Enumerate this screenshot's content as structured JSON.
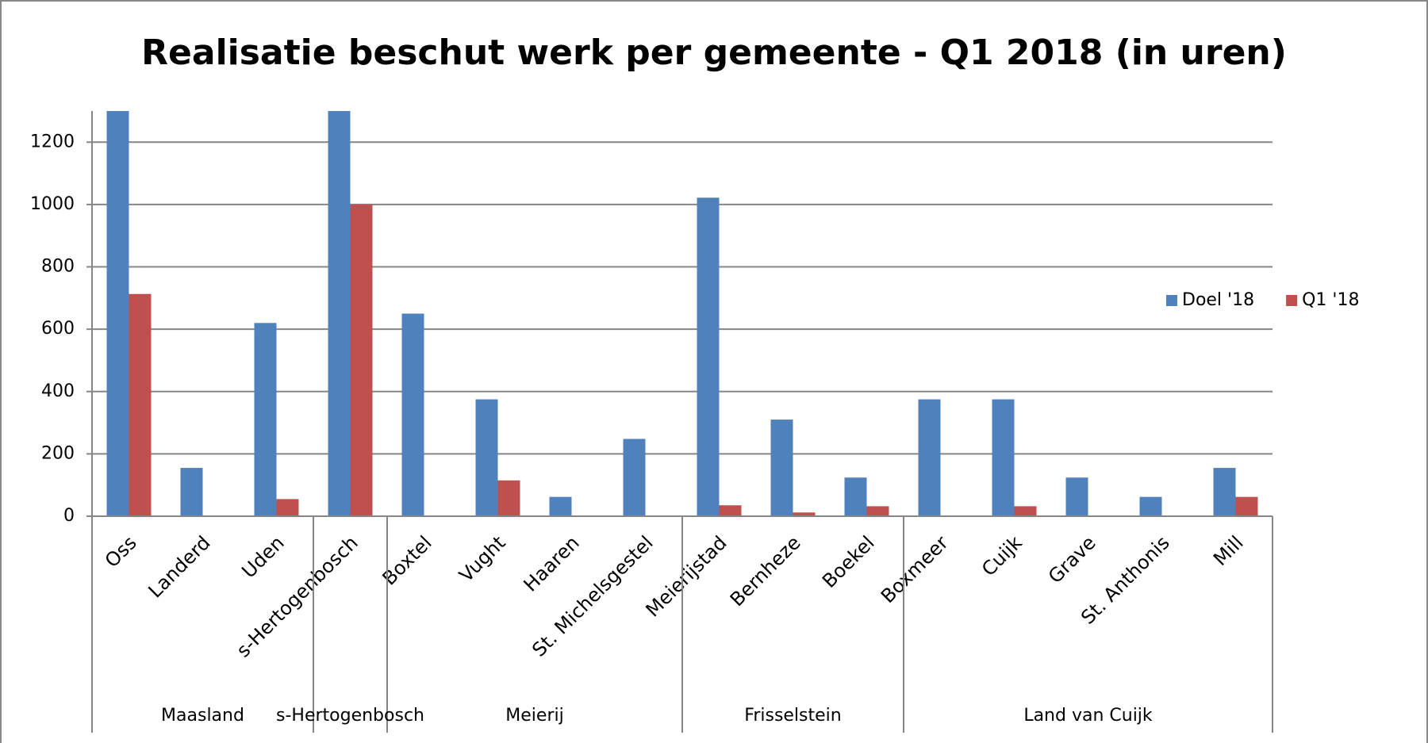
{
  "chart_data": {
    "type": "bar",
    "title": "Realisatie beschut werk per gemeente - Q1 2018 (in uren)",
    "categories": [
      "Oss",
      "Landerd",
      "Uden",
      "s-Hertogenbosch",
      "Boxtel",
      "Vught",
      "Haaren",
      "St. Michelsgestel",
      "Meierijstad",
      "Bernheze",
      "Boekel",
      "Boxmeer",
      "Cuijk",
      "Grave",
      "St. Anthonis",
      "Mill"
    ],
    "groups": [
      {
        "name": "Maasland",
        "size": 3
      },
      {
        "name": "s-Hertogenbosch",
        "size": 1
      },
      {
        "name": "Meierij",
        "size": 4
      },
      {
        "name": "Frisselstein",
        "size": 3
      },
      {
        "name": "Land van Cuijk",
        "size": 5
      }
    ],
    "series": [
      {
        "name": "Doel '18",
        "color": "#4f81bd",
        "values": [
          1300,
          155,
          620,
          1300,
          650,
          375,
          62,
          248,
          1022,
          310,
          124,
          375,
          375,
          124,
          62,
          155
        ]
      },
      {
        "name": "Q1 '18",
        "color": "#c0504d",
        "values": [
          713,
          0,
          55,
          1000,
          0,
          115,
          0,
          0,
          35,
          12,
          32,
          0,
          32,
          0,
          0,
          62
        ]
      }
    ],
    "ylim": [
      0,
      1300
    ],
    "yticks": [
      0,
      200,
      400,
      600,
      800,
      1000,
      1200
    ],
    "grid": true,
    "legend": "right"
  }
}
